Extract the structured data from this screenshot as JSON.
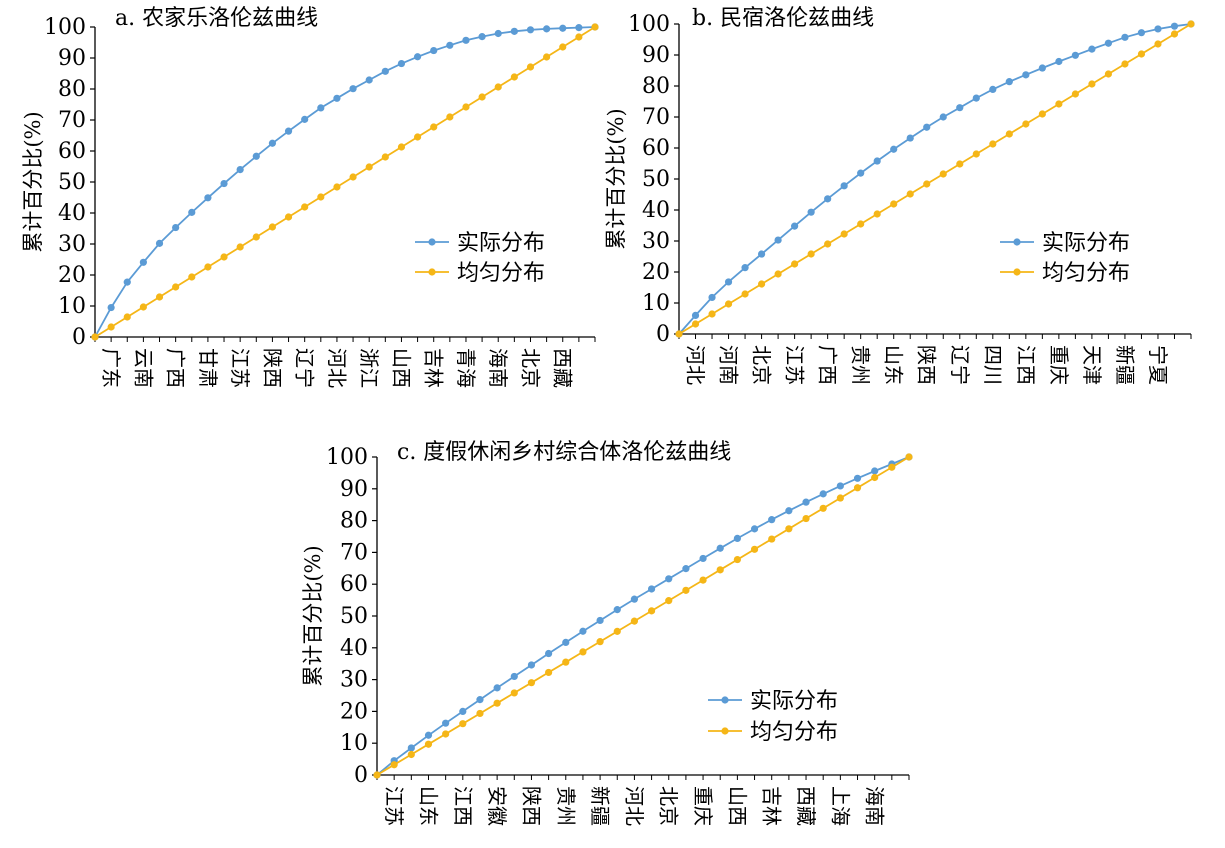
{
  "chart_data": [
    {
      "id": "a",
      "type": "line",
      "title": "a. 农家乐洛伦兹曲线",
      "ylabel": "累计百分比(%)",
      "xlabel": "",
      "ylim": [
        0,
        100
      ],
      "yticks": [
        0,
        10,
        20,
        30,
        40,
        50,
        60,
        70,
        80,
        90,
        100
      ],
      "tick_labels_x": [
        "广东",
        "云南",
        "广西",
        "甘肃",
        "江苏",
        "陕西",
        "辽宁",
        "河北",
        "浙江",
        "山西",
        "吉林",
        "青海",
        "海南",
        "北京",
        "西藏"
      ],
      "legend": {
        "position": "right",
        "entries": [
          "实际分布",
          "均匀分布"
        ]
      },
      "series": [
        {
          "name": "实际分布",
          "color": "#5B9BD5",
          "values": [
            0,
            9.5,
            17.7,
            24.1,
            30.2,
            35.3,
            40.2,
            44.9,
            49.5,
            54.0,
            58.3,
            62.5,
            66.4,
            70.2,
            73.9,
            77.0,
            80.1,
            82.9,
            85.7,
            88.2,
            90.4,
            92.4,
            94.1,
            95.7,
            96.9,
            97.9,
            98.6,
            99.1,
            99.4,
            99.6,
            99.8,
            100
          ]
        },
        {
          "name": "均匀分布",
          "color": "#F5B617",
          "values": "uniform"
        }
      ]
    },
    {
      "id": "b",
      "type": "line",
      "title": "b. 民宿洛伦兹曲线",
      "ylabel": "累计百分比(%)",
      "xlabel": "",
      "ylim": [
        0,
        100
      ],
      "yticks": [
        0,
        10,
        20,
        30,
        40,
        50,
        60,
        70,
        80,
        90,
        100
      ],
      "tick_labels_x": [
        "河北",
        "河南",
        "北京",
        "江苏",
        "广西",
        "贵州",
        "山东",
        "陕西",
        "辽宁",
        "四川",
        "江西",
        "重庆",
        "天津",
        "新疆",
        "宁夏"
      ],
      "legend": {
        "position": "right",
        "entries": [
          "实际分布",
          "均匀分布"
        ]
      },
      "series": [
        {
          "name": "实际分布",
          "color": "#5B9BD5",
          "values": [
            0,
            6.0,
            11.8,
            16.8,
            21.4,
            25.8,
            30.3,
            34.8,
            39.3,
            43.6,
            47.8,
            51.9,
            55.8,
            59.6,
            63.2,
            66.7,
            70.0,
            73.0,
            76.1,
            78.9,
            81.4,
            83.6,
            85.8,
            87.9,
            89.9,
            91.9,
            93.8,
            95.7,
            97.2,
            98.4,
            99.3,
            100
          ]
        },
        {
          "name": "均匀分布",
          "color": "#F5B617",
          "values": "uniform"
        }
      ]
    },
    {
      "id": "c",
      "type": "line",
      "title": "c. 度假休闲乡村综合体洛伦兹曲线",
      "ylabel": "累计百分比(%)",
      "xlabel": "",
      "ylim": [
        0,
        100
      ],
      "yticks": [
        0,
        10,
        20,
        30,
        40,
        50,
        60,
        70,
        80,
        90,
        100
      ],
      "tick_labels_x": [
        "江苏",
        "山东",
        "江西",
        "安徽",
        "陕西",
        "贵州",
        "新疆",
        "河北",
        "北京",
        "重庆",
        "山西",
        "吉林",
        "西藏",
        "上海",
        "海南"
      ],
      "legend": {
        "position": "right",
        "entries": [
          "实际分布",
          "均匀分布"
        ]
      },
      "series": [
        {
          "name": "实际分布",
          "color": "#5B9BD5",
          "values": [
            0,
            4.5,
            8.5,
            12.5,
            16.3,
            20.0,
            23.7,
            27.4,
            31.0,
            34.6,
            38.2,
            41.7,
            45.2,
            48.6,
            52.0,
            55.3,
            58.5,
            61.7,
            64.9,
            68.1,
            71.3,
            74.4,
            77.4,
            80.3,
            83.1,
            85.8,
            88.4,
            90.9,
            93.3,
            95.6,
            97.8,
            100
          ]
        },
        {
          "name": "均匀分布",
          "color": "#F5B617",
          "values": "uniform"
        }
      ]
    }
  ]
}
